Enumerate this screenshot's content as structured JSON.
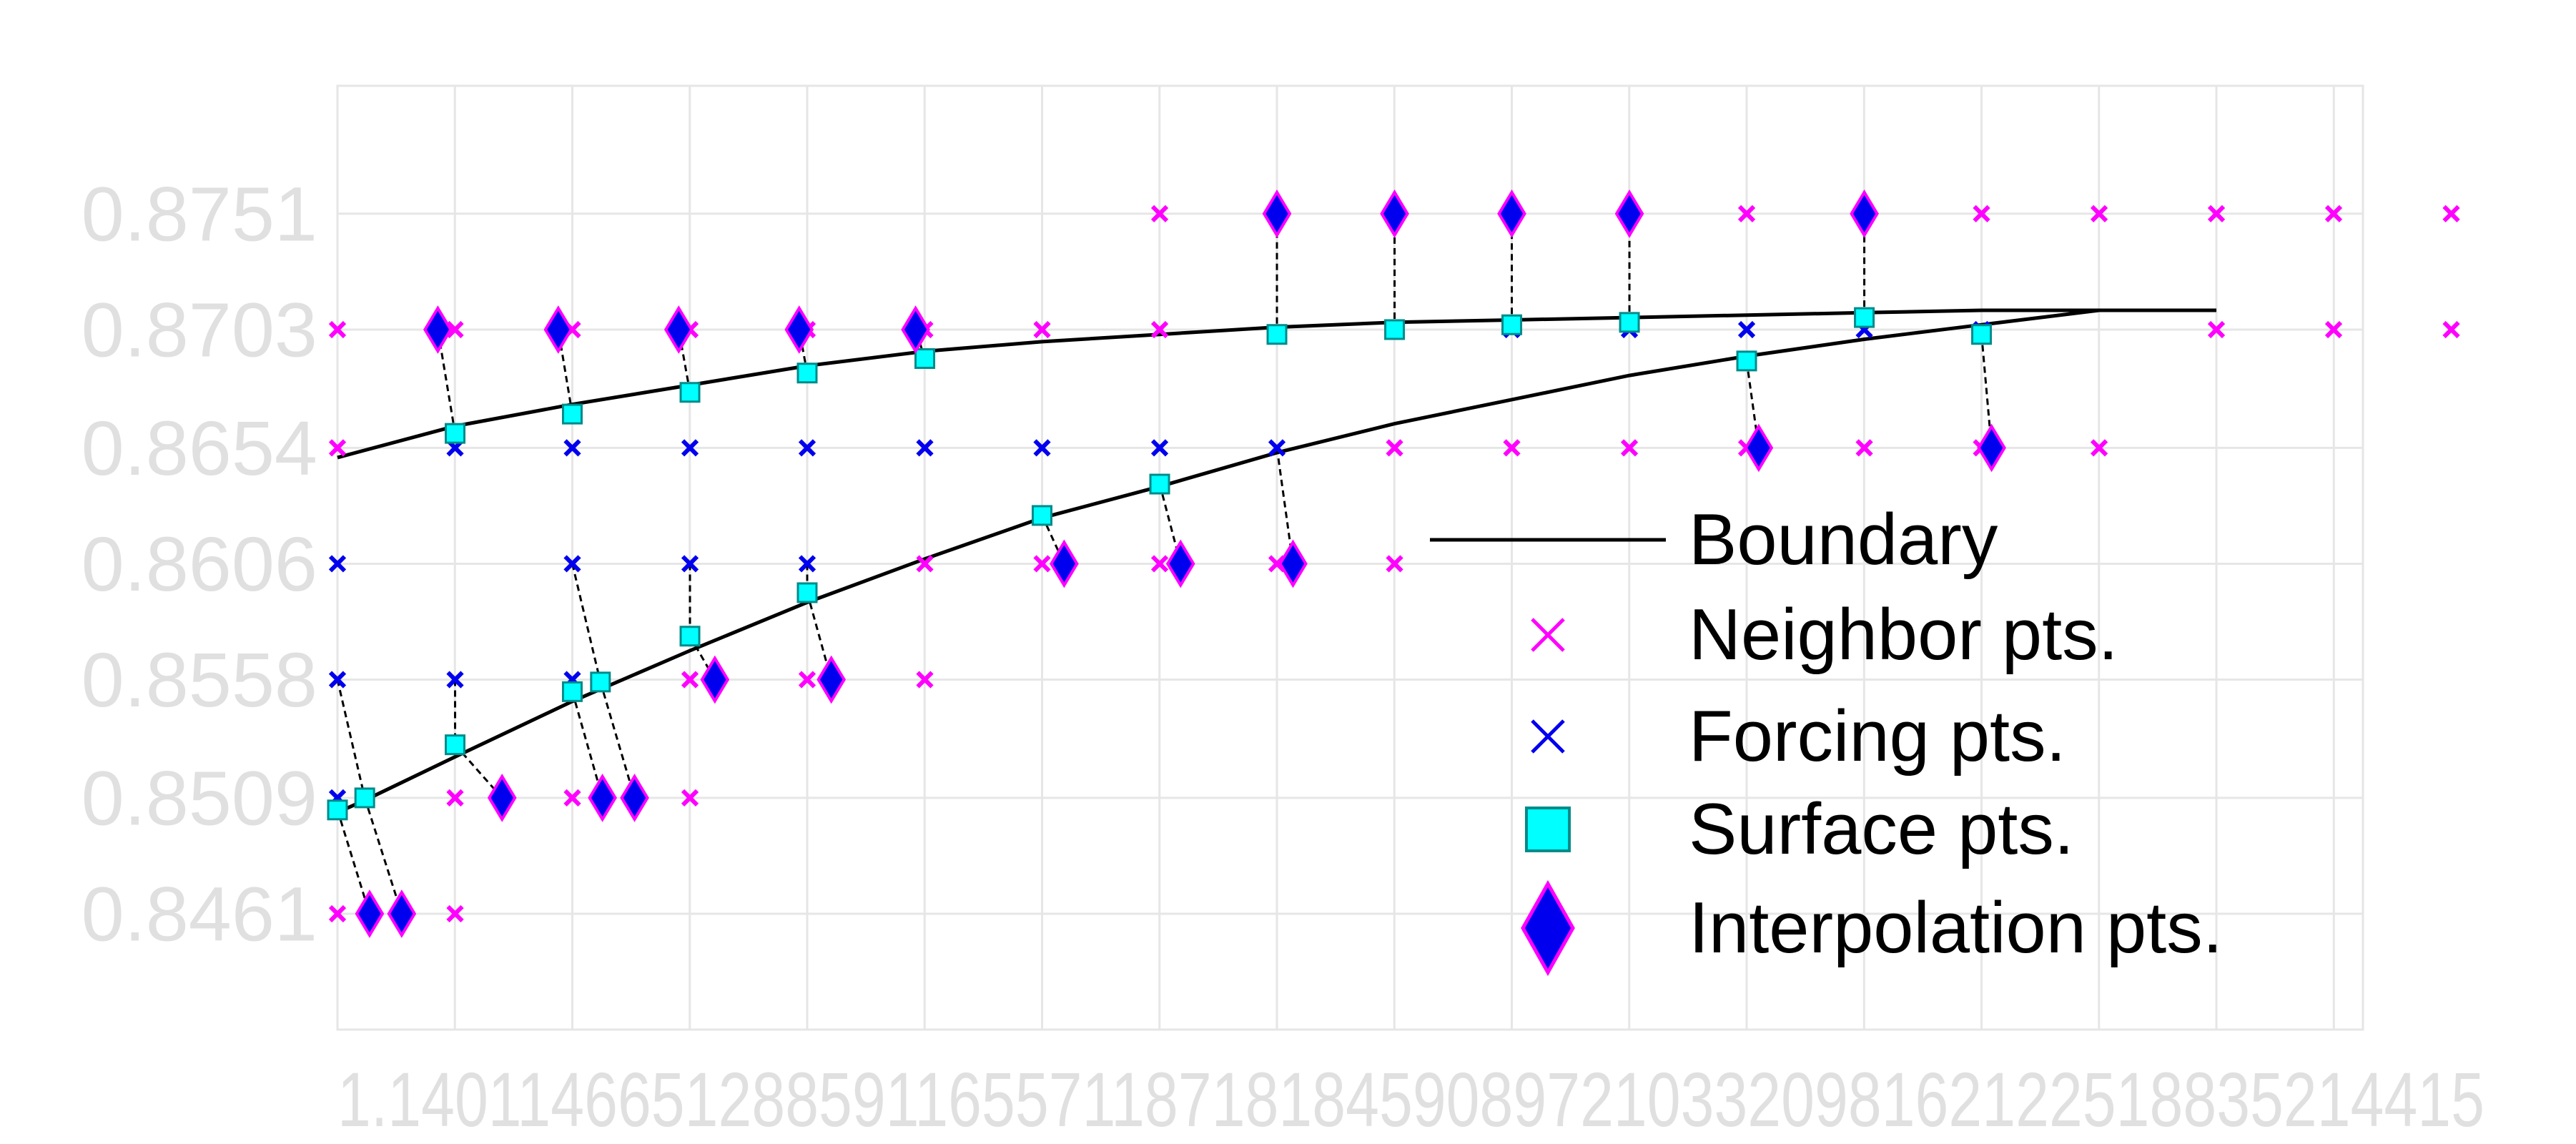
{
  "chart_data": {
    "type": "scatter",
    "title": "",
    "xlabel": "",
    "ylabel": "",
    "xlim": [
      1.137,
      1.6415
    ],
    "ylim": [
      0.8413,
      0.8804
    ],
    "grid": true,
    "y_ticks": [
      {
        "value": 0.8751,
        "label": "0.8751"
      },
      {
        "value": 0.8703,
        "label": "0.8703"
      },
      {
        "value": 0.8654,
        "label": "0.8654"
      },
      {
        "value": 0.8606,
        "label": "0.8606"
      },
      {
        "value": 0.8558,
        "label": "0.8558"
      },
      {
        "value": 0.8509,
        "label": "0.8509"
      },
      {
        "value": 0.8461,
        "label": "0.8461"
      }
    ],
    "x_tick_labels": "1.140114665128859116557118718184590897210332098162122518835214415",
    "legend": {
      "placement": "right",
      "entries": [
        {
          "label": "Boundary",
          "marker": "line",
          "color": "#000000"
        },
        {
          "label": "Neighbor pts.",
          "marker": "x",
          "color": "#ff00ff"
        },
        {
          "label": "Forcing pts.",
          "marker": "x",
          "color": "#0000ee"
        },
        {
          "label": "Surface pts.",
          "marker": "square",
          "color": "#00ffff"
        },
        {
          "label": "Interpolation pts.",
          "marker": "diamond",
          "color": "#0000ee"
        }
      ]
    },
    "colors": {
      "boundary": "#000000",
      "neighbor": "#ff00ff",
      "forcing": "#0000ee",
      "surface_fill": "#00ffff",
      "surface_edge": "#008b8b",
      "interp_fill": "#0000ee",
      "interp_edge": "#ff00ff",
      "grid": "#e6e6e6"
    },
    "boundary_upper": [
      [
        1.137,
        0.865
      ],
      [
        1.1663,
        0.8663
      ],
      [
        1.1955,
        0.8672
      ],
      [
        1.2248,
        0.868
      ],
      [
        1.254,
        0.8688
      ],
      [
        1.2833,
        0.8694
      ],
      [
        1.3125,
        0.8698
      ],
      [
        1.3418,
        0.8701
      ],
      [
        1.371,
        0.8704
      ],
      [
        1.4003,
        0.8706
      ],
      [
        1.4295,
        0.8707
      ],
      [
        1.4588,
        0.8708
      ],
      [
        1.488,
        0.8709
      ],
      [
        1.5173,
        0.871
      ],
      [
        1.5465,
        0.8711
      ],
      [
        1.5758,
        0.8711
      ],
      [
        1.605,
        0.8711
      ]
    ],
    "boundary_lower": [
      [
        1.137,
        0.8503
      ],
      [
        1.1438,
        0.8508
      ],
      [
        1.1663,
        0.8526
      ],
      [
        1.1955,
        0.8549
      ],
      [
        1.2248,
        0.857
      ],
      [
        1.254,
        0.859
      ],
      [
        1.2833,
        0.8608
      ],
      [
        1.3125,
        0.8625
      ],
      [
        1.3418,
        0.8638
      ],
      [
        1.371,
        0.8652
      ],
      [
        1.4003,
        0.8664
      ],
      [
        1.4295,
        0.8674
      ],
      [
        1.4588,
        0.8684
      ],
      [
        1.488,
        0.8692
      ],
      [
        1.5173,
        0.8699
      ],
      [
        1.5465,
        0.8705
      ],
      [
        1.5758,
        0.8711
      ],
      [
        1.605,
        0.8711
      ]
    ],
    "neighbor_pts": [
      [
        1.137,
        0.8703
      ],
      [
        1.137,
        0.8654
      ],
      [
        1.137,
        0.8461
      ],
      [
        1.1663,
        0.8703
      ],
      [
        1.1663,
        0.8509
      ],
      [
        1.1663,
        0.8461
      ],
      [
        1.1955,
        0.8703
      ],
      [
        1.1955,
        0.8509
      ],
      [
        1.2248,
        0.8703
      ],
      [
        1.2248,
        0.8558
      ],
      [
        1.2248,
        0.8509
      ],
      [
        1.254,
        0.8703
      ],
      [
        1.254,
        0.8558
      ],
      [
        1.2833,
        0.8703
      ],
      [
        1.2833,
        0.8606
      ],
      [
        1.2833,
        0.8558
      ],
      [
        1.3125,
        0.8703
      ],
      [
        1.3125,
        0.8606
      ],
      [
        1.3418,
        0.8751
      ],
      [
        1.3418,
        0.8703
      ],
      [
        1.3418,
        0.8606
      ],
      [
        1.371,
        0.8751
      ],
      [
        1.371,
        0.8606
      ],
      [
        1.4003,
        0.8751
      ],
      [
        1.4003,
        0.8654
      ],
      [
        1.4003,
        0.8606
      ],
      [
        1.4295,
        0.8751
      ],
      [
        1.4295,
        0.8654
      ],
      [
        1.4588,
        0.8751
      ],
      [
        1.4588,
        0.8654
      ],
      [
        1.488,
        0.8751
      ],
      [
        1.488,
        0.8654
      ],
      [
        1.5173,
        0.8751
      ],
      [
        1.5173,
        0.8654
      ],
      [
        1.5465,
        0.8751
      ],
      [
        1.5465,
        0.8654
      ],
      [
        1.5758,
        0.8751
      ],
      [
        1.5758,
        0.8654
      ],
      [
        1.605,
        0.8751
      ],
      [
        1.605,
        0.8703
      ],
      [
        1.6342,
        0.8751
      ],
      [
        1.6342,
        0.8703
      ],
      [
        1.6635,
        0.8751
      ],
      [
        1.6635,
        0.8703
      ]
    ],
    "forcing_pts": [
      [
        1.137,
        0.8606
      ],
      [
        1.137,
        0.8558
      ],
      [
        1.137,
        0.8509
      ],
      [
        1.1663,
        0.8654
      ],
      [
        1.1663,
        0.8558
      ],
      [
        1.1955,
        0.8654
      ],
      [
        1.1955,
        0.8606
      ],
      [
        1.1955,
        0.8558
      ],
      [
        1.2248,
        0.8654
      ],
      [
        1.2248,
        0.8606
      ],
      [
        1.254,
        0.8654
      ],
      [
        1.254,
        0.8606
      ],
      [
        1.2833,
        0.8654
      ],
      [
        1.3125,
        0.8654
      ],
      [
        1.3418,
        0.8654
      ],
      [
        1.371,
        0.8654
      ],
      [
        1.4003,
        0.8703
      ],
      [
        1.4295,
        0.8703
      ],
      [
        1.4588,
        0.8703
      ],
      [
        1.488,
        0.8703
      ],
      [
        1.5173,
        0.8703
      ],
      [
        1.5465,
        0.8703
      ]
    ],
    "surface_pts": [
      [
        1.1663,
        0.866
      ],
      [
        1.1955,
        0.8668
      ],
      [
        1.2248,
        0.8677
      ],
      [
        1.254,
        0.8685
      ],
      [
        1.2833,
        0.8691
      ],
      [
        1.1438,
        0.8509
      ],
      [
        1.1663,
        0.8531
      ],
      [
        1.1955,
        0.8553
      ],
      [
        1.2025,
        0.8557
      ],
      [
        1.2248,
        0.8576
      ],
      [
        1.254,
        0.8594
      ],
      [
        1.3125,
        0.8626
      ],
      [
        1.3418,
        0.8639
      ],
      [
        1.371,
        0.8701
      ],
      [
        1.4003,
        0.8703
      ],
      [
        1.4295,
        0.8705
      ],
      [
        1.4588,
        0.8706
      ],
      [
        1.488,
        0.869
      ],
      [
        1.5173,
        0.8708
      ],
      [
        1.5465,
        0.8701
      ],
      [
        1.137,
        0.8504
      ]
    ],
    "interpolation_pts": [
      [
        1.162,
        0.8703
      ],
      [
        1.192,
        0.8703
      ],
      [
        1.222,
        0.8703
      ],
      [
        1.252,
        0.8703
      ],
      [
        1.281,
        0.8703
      ],
      [
        1.145,
        0.8461
      ],
      [
        1.153,
        0.8461
      ],
      [
        1.178,
        0.8509
      ],
      [
        1.203,
        0.8509
      ],
      [
        1.211,
        0.8509
      ],
      [
        1.231,
        0.8558
      ],
      [
        1.26,
        0.8558
      ],
      [
        1.318,
        0.8606
      ],
      [
        1.347,
        0.8606
      ],
      [
        1.375,
        0.8606
      ],
      [
        1.371,
        0.8751
      ],
      [
        1.4003,
        0.8751
      ],
      [
        1.4295,
        0.8751
      ],
      [
        1.4588,
        0.8751
      ],
      [
        1.5173,
        0.8751
      ],
      [
        1.491,
        0.8654
      ],
      [
        1.549,
        0.8654
      ]
    ],
    "connectors": [
      [
        [
          1.1663,
          0.866
        ],
        [
          1.162,
          0.8703
        ]
      ],
      [
        [
          1.1955,
          0.8668
        ],
        [
          1.192,
          0.8703
        ]
      ],
      [
        [
          1.2248,
          0.8677
        ],
        [
          1.222,
          0.8703
        ]
      ],
      [
        [
          1.254,
          0.8685
        ],
        [
          1.252,
          0.8703
        ]
      ],
      [
        [
          1.2833,
          0.8691
        ],
        [
          1.281,
          0.8703
        ]
      ],
      [
        [
          1.137,
          0.8504
        ],
        [
          1.145,
          0.8461
        ]
      ],
      [
        [
          1.1438,
          0.8509
        ],
        [
          1.153,
          0.8461
        ]
      ],
      [
        [
          1.1663,
          0.8531
        ],
        [
          1.178,
          0.8509
        ]
      ],
      [
        [
          1.1955,
          0.8553
        ],
        [
          1.203,
          0.8509
        ]
      ],
      [
        [
          1.2025,
          0.8557
        ],
        [
          1.211,
          0.8509
        ]
      ],
      [
        [
          1.2248,
          0.8576
        ],
        [
          1.231,
          0.8558
        ]
      ],
      [
        [
          1.254,
          0.8594
        ],
        [
          1.26,
          0.8558
        ]
      ],
      [
        [
          1.3125,
          0.8626
        ],
        [
          1.318,
          0.8606
        ]
      ],
      [
        [
          1.3418,
          0.8639
        ],
        [
          1.347,
          0.8606
        ]
      ],
      [
        [
          1.371,
          0.8654
        ],
        [
          1.375,
          0.8606
        ]
      ],
      [
        [
          1.371,
          0.8701
        ],
        [
          1.371,
          0.8751
        ]
      ],
      [
        [
          1.4003,
          0.8703
        ],
        [
          1.4003,
          0.8751
        ]
      ],
      [
        [
          1.4295,
          0.8705
        ],
        [
          1.4295,
          0.8751
        ]
      ],
      [
        [
          1.4588,
          0.8706
        ],
        [
          1.4588,
          0.8751
        ]
      ],
      [
        [
          1.5173,
          0.8708
        ],
        [
          1.5173,
          0.8751
        ]
      ],
      [
        [
          1.488,
          0.869
        ],
        [
          1.491,
          0.8654
        ]
      ],
      [
        [
          1.5465,
          0.8701
        ],
        [
          1.549,
          0.8654
        ]
      ],
      [
        [
          1.137,
          0.8558
        ],
        [
          1.1438,
          0.8509
        ]
      ],
      [
        [
          1.1663,
          0.8558
        ],
        [
          1.1663,
          0.8531
        ]
      ],
      [
        [
          1.1955,
          0.8606
        ],
        [
          1.2025,
          0.8557
        ]
      ],
      [
        [
          1.2248,
          0.8606
        ],
        [
          1.2248,
          0.8576
        ]
      ],
      [
        [
          1.254,
          0.8606
        ],
        [
          1.254,
          0.8594
        ]
      ]
    ]
  }
}
